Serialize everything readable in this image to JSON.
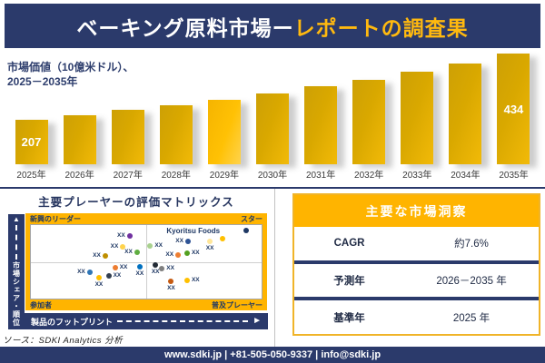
{
  "colors": {
    "navy": "#2B3A6B",
    "gold_band": "#FFB400",
    "bar_gold": "#D9A800",
    "bar_highlight": "#FFC104",
    "title_gold": "#FFB90F",
    "label_navy": "#1F3864"
  },
  "header": {
    "title_white": "ベーキング原料市場ー",
    "title_gold": "レポートの調査果"
  },
  "bar_section": {
    "subtitle_line1": "市場価値（10億米ドル）、",
    "subtitle_line2": "2025－2035年"
  },
  "chart_data": [
    {
      "type": "bar",
      "title": "市場価値（10億米ドル）、2025－2035年",
      "xlabel": "年",
      "ylabel": "市場価値（10億米ドル）",
      "categories": [
        "2025年",
        "2026年",
        "2027年",
        "2028年",
        "2029年",
        "2030年",
        "2031年",
        "2032年",
        "2033年",
        "2034年",
        "2035年"
      ],
      "values": [
        207,
        223,
        240,
        258,
        277,
        298,
        321,
        345,
        372,
        400,
        434
      ],
      "visible_value_labels": {
        "2025年": "207",
        "2035年": "434"
      },
      "highlight_category": "2029年",
      "legend": "none",
      "grid": "off"
    },
    {
      "type": "scatter",
      "title": "主要プレーヤーの評価マトリックス",
      "xlabel": "製品のフットプリント",
      "ylabel": "市場シェア・順位",
      "quadrants": {
        "top_left": "新興のリーダー",
        "top_right": "スター",
        "bottom_left": "参加者",
        "bottom_right": "普及プレーヤー"
      },
      "highlighted_company": "Kyoritsu Foods",
      "points": [
        {
          "x": 42.8,
          "y": 15.0,
          "color": "#7030A0",
          "label": "XX",
          "label_pos": "left"
        },
        {
          "x": 39.9,
          "y": 29.5,
          "color": "#FFD34D",
          "label": "XX",
          "label_pos": "left"
        },
        {
          "x": 46.0,
          "y": 36.5,
          "color": "#5FAD41",
          "label": "XX",
          "label_pos": "left"
        },
        {
          "x": 32.2,
          "y": 42.0,
          "color": "#BF8F00",
          "label": "XX",
          "label_pos": "left"
        },
        {
          "x": 51.7,
          "y": 28.5,
          "color": "#A9D18E",
          "label": "XX",
          "label_pos": "right"
        },
        {
          "x": 68.1,
          "y": 22.3,
          "color": "#2E5395",
          "label": "XX",
          "label_pos": "left"
        },
        {
          "x": 77.6,
          "y": 22.3,
          "color": "#FFE699",
          "label": "XX",
          "label_pos": "below"
        },
        {
          "x": 83.1,
          "y": 18.2,
          "color": "#FFC000",
          "label": "Kyoritsu Foods",
          "label_pos": "above-left"
        },
        {
          "x": 93.3,
          "y": 7.1,
          "color": "#1F3864",
          "label": "",
          "label_pos": "none"
        },
        {
          "x": 63.8,
          "y": 41.3,
          "color": "#ED7D31",
          "label": "XX",
          "label_pos": "left"
        },
        {
          "x": 67.7,
          "y": 38.1,
          "color": "#54A021",
          "label": "XX",
          "label_pos": "right"
        },
        {
          "x": 25.5,
          "y": 63.9,
          "color": "#2E75B6",
          "label": "XX",
          "label_pos": "left"
        },
        {
          "x": 36.5,
          "y": 57.5,
          "color": "#ED7D31",
          "label": "XX",
          "label_pos": "right"
        },
        {
          "x": 29.5,
          "y": 71.8,
          "color": "#FFC000",
          "label": "XX",
          "label_pos": "below"
        },
        {
          "x": 33.7,
          "y": 69.0,
          "color": "#333F50",
          "label": "XX",
          "label_pos": "right"
        },
        {
          "x": 47.2,
          "y": 57.1,
          "color": "#0070C0",
          "label": "XX",
          "label_pos": "below"
        },
        {
          "x": 54.0,
          "y": 53.9,
          "color": "#222A35",
          "label": "XX",
          "label_pos": "below"
        },
        {
          "x": 56.8,
          "y": 59.2,
          "color": "#7F7F7F",
          "label": "XX",
          "label_pos": "right"
        },
        {
          "x": 60.8,
          "y": 77.0,
          "color": "#C55A11",
          "label": "XX",
          "label_pos": "below"
        },
        {
          "x": 67.7,
          "y": 75.0,
          "color": "#FFC000",
          "label": "XX",
          "label_pos": "right"
        }
      ],
      "source": "ソース：SDKI Analytics 分析"
    }
  ],
  "matrix": {
    "title": "主要プレーヤーの評価マトリックス",
    "y_axis_label": "市場シェア・順位",
    "x_axis_label": "製品のフットプリント",
    "source": "ソース：SDKI Analytics 分析",
    "point_placeholder": "XX"
  },
  "insights": {
    "title": "主要な市場洞察",
    "rows": [
      {
        "label": "CAGR",
        "value": "約7.6%"
      },
      {
        "label": "予測年",
        "value": "2026－2035 年"
      },
      {
        "label": "基準年",
        "value": "2025 年"
      }
    ]
  },
  "footer": {
    "text": "www.sdki.jp | +81-505-050-9337 | info@sdki.jp"
  }
}
